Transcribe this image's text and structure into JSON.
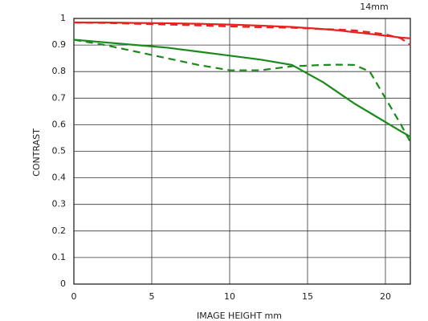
{
  "chart_data": {
    "type": "line",
    "title": "14mm",
    "x_label": "IMAGE HEIGHT   mm",
    "y_label": "CONTRAST",
    "x": [
      0,
      2,
      4,
      6,
      8,
      10,
      12,
      14,
      16,
      17,
      18,
      19,
      20,
      21,
      21.6
    ],
    "series": [
      {
        "color": "#e8221e",
        "dashed": false,
        "values": [
          0.985,
          0.985,
          0.983,
          0.982,
          0.98,
          0.977,
          0.973,
          0.968,
          0.96,
          0.955,
          0.948,
          0.942,
          0.935,
          0.928,
          0.925
        ]
      },
      {
        "color": "#e8221e",
        "dashed": true,
        "values": [
          0.985,
          0.983,
          0.98,
          0.977,
          0.974,
          0.97,
          0.967,
          0.965,
          0.96,
          0.958,
          0.955,
          0.948,
          0.94,
          0.925,
          0.9
        ]
      },
      {
        "color": "#1a8a1a",
        "dashed": false,
        "values": [
          0.92,
          0.91,
          0.9,
          0.89,
          0.875,
          0.86,
          0.845,
          0.825,
          0.76,
          0.72,
          0.68,
          0.645,
          0.61,
          0.575,
          0.555
        ]
      },
      {
        "color": "#1a8a1a",
        "dashed": true,
        "values": [
          0.92,
          0.9,
          0.875,
          0.85,
          0.825,
          0.805,
          0.805,
          0.82,
          0.825,
          0.826,
          0.825,
          0.8,
          0.7,
          0.6,
          0.535
        ]
      }
    ],
    "xlim": [
      0,
      21.6
    ],
    "ylim": [
      0,
      1
    ],
    "xticks": [
      0,
      5,
      10,
      15,
      20
    ],
    "yticks": [
      0,
      0.1,
      0.2,
      0.3,
      0.4,
      0.5,
      0.6,
      0.7,
      0.8,
      0.9,
      1
    ],
    "grid": true
  }
}
